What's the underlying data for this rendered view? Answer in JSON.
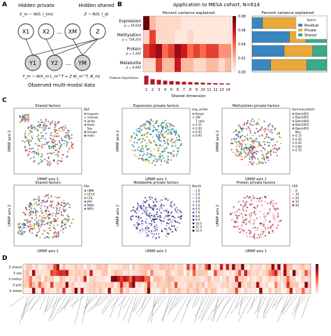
{
  "panels": {
    "A": {
      "letter": "A",
      "hidden_private": "Hidden private",
      "hidden_shared": "Hidden shared",
      "prior_private": "X_m ~ N(0, I_km)",
      "prior_shared": "Z ~ N(0, I_d)",
      "latent_nodes": [
        "X1",
        "X2",
        "...",
        "XM",
        "Z"
      ],
      "observed_nodes": [
        "Y1",
        "Y2",
        "...",
        "YM"
      ],
      "likelihood": "Y_m ~ N(X_m L_m^T + Z W_m^T, Φ_m)",
      "caption": "Observed multi-modal data"
    },
    "B": {
      "letter": "B",
      "title": "Application to MESA cohort, N=614",
      "heatmap_title": "Percent variance explained",
      "stack_title": "Percent variance explained",
      "rows": [
        {
          "name": "Expression",
          "p": "p = 19,034"
        },
        {
          "name": "Methylation",
          "p": "p = 724,210"
        },
        {
          "name": "Protein",
          "p": "p = 1,302"
        },
        {
          "name": "Metabolite",
          "p": "p = 6,042"
        }
      ],
      "importance_label": "Feature importance",
      "xlabel": "Shared dimension",
      "xticks": [
        "1",
        "2",
        "3",
        "4",
        "5",
        "6",
        "7",
        "8",
        "9",
        "10",
        "11",
        "12",
        "13",
        "14"
      ],
      "colorbar_ticks": [
        "0.08",
        "0.06",
        "0.04",
        "0.02",
        "0.00"
      ],
      "legend_title": "Space",
      "legend": [
        {
          "name": "Residual",
          "color": "#3a86c0"
        },
        {
          "name": "Private",
          "color": "#e9a83a"
        },
        {
          "name": "Shared",
          "color": "#3aaa8a"
        }
      ]
    },
    "C": {
      "letter": "C",
      "axis_x": "UMAP axis 1",
      "axis_y": "UMAP axis 2",
      "plots": [
        {
          "title": "Shared factors",
          "legend_title": "SEA",
          "legend": [
            "hispanic",
            "chinese",
            "white",
            "black",
            "Sex",
            "female",
            "male"
          ]
        },
        {
          "title": "Expression private factors",
          "legend_title": "seq_center",
          "legend": [
            "Broad",
            "UW",
            "T cells",
            "0.15",
            "0.30",
            "0.45",
            "0.60"
          ]
        },
        {
          "title": "Methylation private factors",
          "legend_title": "Summary.batch",
          "legend": [
            "Batch002",
            "Batch001",
            "Batch004",
            "Batch003",
            "Batch005",
            "Neu",
            "0.15",
            "0.30",
            "0.45",
            "0.60",
            "0.75"
          ]
        },
        {
          "title": "Shared factors",
          "legend_title": "Site",
          "legend": [
            "UMN",
            "UCLA",
            "COL",
            "JHU",
            "NWU",
            "WFU"
          ]
        },
        {
          "title": "Metabolite private factors",
          "legend_title": "Month",
          "legend": [
            "1.0",
            "2.0",
            "3.0",
            "4.0",
            "5.0",
            "6.0",
            "7.0",
            "8.0",
            "9.0",
            "10.0",
            "11.0",
            "12.0"
          ]
        },
        {
          "title": "Protein private factors",
          "legend_title": "CRP",
          "legend": [
            "8",
            "16",
            "24",
            "32",
            "40"
          ]
        }
      ]
    },
    "D": {
      "letter": "D",
      "rows": [
        "Z shared",
        "X exp",
        "X methyl",
        "X prot",
        "X metab"
      ]
    }
  },
  "chart_data": [
    {
      "type": "heatmap",
      "title": "Percent variance explained",
      "xlabel": "Shared dimension",
      "x": [
        1,
        2,
        3,
        4,
        5,
        6,
        7,
        8,
        9,
        10,
        11,
        12,
        13,
        14
      ],
      "y": [
        "Expression",
        "Methylation",
        "Protein",
        "Metabolite"
      ],
      "values": [
        [
          0.08,
          0.02,
          0.01,
          0.01,
          0.01,
          0.01,
          0.005,
          0.005,
          0.005,
          0.005,
          0.005,
          0.005,
          0.005,
          0.005
        ],
        [
          0.012,
          0.05,
          0.01,
          0.01,
          0.01,
          0.005,
          0.005,
          0.01,
          0.005,
          0.005,
          0.005,
          0.005,
          0.005,
          0.005
        ],
        [
          0.05,
          0.06,
          0.07,
          0.04,
          0.05,
          0.07,
          0.06,
          0.04,
          0.05,
          0.04,
          0.05,
          0.05,
          0.03,
          0.03
        ],
        [
          0.01,
          0.01,
          0.05,
          0.02,
          0.02,
          0.06,
          0.02,
          0.02,
          0.01,
          0.01,
          0.02,
          0.02,
          0.01,
          0.02
        ]
      ],
      "colorbar_range": [
        0,
        0.08
      ],
      "feature_importance": [
        0.9,
        0.55,
        0.48,
        0.4,
        0.36,
        0.32,
        0.28,
        0.25,
        0.22,
        0.19,
        0.16,
        0.14,
        0.12,
        0.1
      ]
    },
    {
      "type": "bar",
      "title": "Percent variance explained",
      "categories": [
        "Expression",
        "Methylation",
        "Protein",
        "Metabolite"
      ],
      "series": [
        {
          "name": "Residual",
          "values": [
            0.14,
            0.5,
            0.43,
            0.25
          ]
        },
        {
          "name": "Private",
          "values": [
            0.48,
            0.22,
            0.38,
            0.48
          ]
        },
        {
          "name": "Shared",
          "values": [
            0.38,
            0.28,
            0.19,
            0.27
          ]
        }
      ],
      "xlim": [
        0,
        1
      ],
      "legend_position": "top-right"
    }
  ]
}
